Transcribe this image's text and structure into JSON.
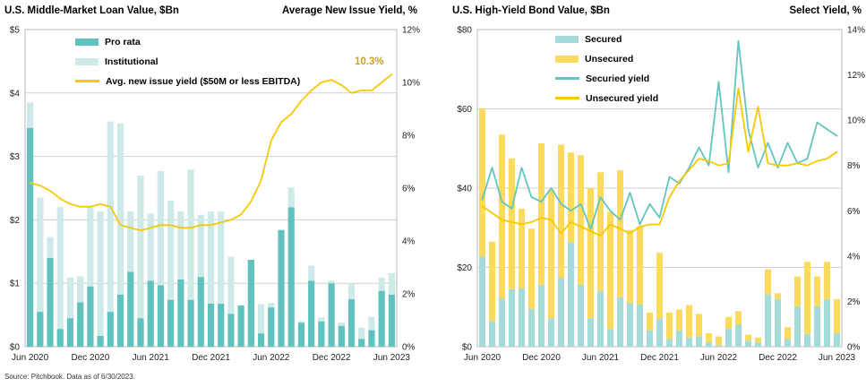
{
  "source_note": "Source: Pitchbook. Data as of 6/30/2023.",
  "colors": {
    "pro_rata": "#5fc2be",
    "institutional": "#cdeae8",
    "secured": "#a5dbd8",
    "unsecured": "#fbda5c",
    "avg_yield_line": "#f4ca06",
    "secured_yield_line": "#62c5c1",
    "unsecured_yield_line": "#f6c900",
    "grid": "#cfcfcf",
    "border": "#b9b9b9",
    "axis_text": "#222222",
    "end_label": "#c7a418"
  },
  "chart_data": [
    {
      "type": "bar",
      "title_left": "U.S. Middle-Market Loan Value, $Bn",
      "title_right": "Average New Issue Yield, %",
      "end_label": "10.3%",
      "categories": [
        "Jun 2020",
        "Jul 2020",
        "Aug 2020",
        "Sep 2020",
        "Oct 2020",
        "Nov 2020",
        "Dec 2020",
        "Jan 2021",
        "Feb 2021",
        "Mar 2021",
        "Apr 2021",
        "May 2021",
        "Jun 2021",
        "Jul 2021",
        "Aug 2021",
        "Sep 2021",
        "Oct 2021",
        "Nov 2021",
        "Dec 2021",
        "Jan 2022",
        "Feb 2022",
        "Mar 2022",
        "Apr 2022",
        "May 2022",
        "Jun 2022",
        "Jul 2022",
        "Aug 2022",
        "Sep 2022",
        "Oct 2022",
        "Nov 2022",
        "Dec 2022",
        "Jan 2023",
        "Feb 2023",
        "Mar 2023",
        "Apr 2023",
        "May 2023",
        "Jun 2023"
      ],
      "x_tick_indices": [
        0,
        6,
        12,
        18,
        24,
        30,
        36
      ],
      "x_tick_labels": [
        "Jun 2020",
        "Dec 2020",
        "Jun 2021",
        "Dec 2021",
        "Jun 2022",
        "Dec 2022",
        "Jun 2023"
      ],
      "left_axis": {
        "max": 5,
        "tick_values": [
          5,
          4,
          3,
          2,
          1,
          0
        ],
        "tick_labels": [
          "$5",
          "$4",
          "$3",
          "$2",
          "$1",
          "$0"
        ],
        "grid_values": [
          4,
          3,
          2,
          1
        ]
      },
      "right_axis": {
        "max": 12,
        "tick_values": [
          12,
          10,
          8,
          6,
          4,
          2,
          0
        ],
        "tick_labels": [
          "12%",
          "10%",
          "8%",
          "6%",
          "4%",
          "2%",
          "0%"
        ]
      },
      "series_bars": [
        {
          "name": "Pro rata",
          "color": "pro_rata",
          "values": [
            3.45,
            0.55,
            1.4,
            0.28,
            0.45,
            0.7,
            0.95,
            0.17,
            0.55,
            0.82,
            1.18,
            0.45,
            1.04,
            0.97,
            0.74,
            1.06,
            0.74,
            1.1,
            0.68,
            0.68,
            0.52,
            0.65,
            1.37,
            0.21,
            0.62,
            1.84,
            2.2,
            0.38,
            1.04,
            0.4,
            1.0,
            0.33,
            0.75,
            0.12,
            0.26,
            0.88,
            0.82
          ]
        },
        {
          "name": "Institutional",
          "color": "institutional",
          "values": [
            0.4,
            1.8,
            0.33,
            1.92,
            0.64,
            0.41,
            1.25,
            1.96,
            3.0,
            2.7,
            0.95,
            2.25,
            1.06,
            1.8,
            1.56,
            1.07,
            2.05,
            0.98,
            1.45,
            1.45,
            0.9,
            0.0,
            0.0,
            0.46,
            0.07,
            0.0,
            0.31,
            0.02,
            0.24,
            0.06,
            0.04,
            0.05,
            0.25,
            0.18,
            0.21,
            0.21,
            0.34
          ]
        }
      ],
      "series_lines": [
        {
          "name": "Avg. new issue yield ($50M or less EBITDA)",
          "color": "avg_yield_line",
          "values": [
            6.2,
            6.1,
            5.9,
            5.6,
            5.4,
            5.3,
            5.3,
            5.4,
            5.3,
            4.6,
            4.5,
            4.4,
            4.5,
            4.6,
            4.6,
            4.5,
            4.5,
            4.6,
            4.6,
            4.7,
            4.8,
            5.0,
            5.5,
            6.3,
            7.8,
            8.5,
            8.8,
            9.3,
            9.7,
            10.0,
            10.1,
            9.9,
            9.6,
            9.7,
            9.7,
            10.0,
            10.3
          ]
        }
      ],
      "legend": [
        {
          "label": "Pro rata",
          "type": "bar",
          "color": "pro_rata"
        },
        {
          "label": "Institutional",
          "type": "bar",
          "color": "institutional"
        },
        {
          "label": "Avg. new issue yield ($50M or less EBITDA)",
          "type": "line",
          "color": "avg_yield_line"
        }
      ]
    },
    {
      "type": "bar",
      "title_left": "U.S. High-Yield Bond Value, $Bn",
      "title_right": "Select Yield, %",
      "end_label": "",
      "categories": [
        "Jun 2020",
        "Jul 2020",
        "Aug 2020",
        "Sep 2020",
        "Oct 2020",
        "Nov 2020",
        "Dec 2020",
        "Jan 2021",
        "Feb 2021",
        "Mar 2021",
        "Apr 2021",
        "May 2021",
        "Jun 2021",
        "Jul 2021",
        "Aug 2021",
        "Sep 2021",
        "Oct 2021",
        "Nov 2021",
        "Dec 2021",
        "Jan 2022",
        "Feb 2022",
        "Mar 2022",
        "Apr 2022",
        "May 2022",
        "Jun 2022",
        "Jul 2022",
        "Aug 2022",
        "Sep 2022",
        "Oct 2022",
        "Nov 2022",
        "Dec 2022",
        "Jan 2023",
        "Feb 2023",
        "Mar 2023",
        "Apr 2023",
        "May 2023",
        "Jun 2023"
      ],
      "x_tick_indices": [
        0,
        6,
        12,
        18,
        24,
        30,
        36
      ],
      "x_tick_labels": [
        "Jun 2020",
        "Dec 2020",
        "Jun 2021",
        "Dec 2021",
        "Jun 2022",
        "Dec 2022",
        "Jun 2023"
      ],
      "left_axis": {
        "max": 80,
        "tick_values": [
          80,
          60,
          40,
          20,
          0
        ],
        "tick_labels": [
          "$80",
          "$60",
          "$40",
          "$20",
          "$0"
        ],
        "grid_values": [
          60,
          40,
          20
        ]
      },
      "right_axis": {
        "max": 14,
        "tick_values": [
          14,
          12,
          10,
          8,
          6,
          4,
          2,
          0
        ],
        "tick_labels": [
          "14%",
          "12%",
          "10%",
          "8%",
          "6%",
          "4%",
          "2%",
          "0%"
        ]
      },
      "series_bars": [
        {
          "name": "Secured",
          "color": "secured",
          "values": [
            22.8,
            6.5,
            12.2,
            14.5,
            14.7,
            9.5,
            15.6,
            7.2,
            17.4,
            26.4,
            15.6,
            7.2,
            14.0,
            4.5,
            12.4,
            11.0,
            10.6,
            4.1,
            7.1,
            1.9,
            4.1,
            2.3,
            2.6,
            1.1,
            0.4,
            4.5,
            5.6,
            1.5,
            1.1,
            13.2,
            12.0,
            1.9,
            10.2,
            3.2,
            10.2,
            12.0,
            3.4
          ]
        },
        {
          "name": "Unsecured",
          "color": "unsecured",
          "values": [
            37.3,
            20.0,
            41.3,
            33.0,
            20.1,
            20.3,
            35.7,
            32.4,
            33.6,
            22.6,
            32.7,
            32.8,
            30.0,
            29.5,
            32.1,
            18.4,
            19.7,
            4.5,
            16.6,
            6.7,
            5.3,
            8.2,
            5.7,
            2.3,
            2.2,
            3.0,
            3.4,
            1.5,
            1.2,
            6.3,
            1.5,
            3.0,
            7.5,
            18.2,
            7.5,
            9.4,
            8.6
          ]
        }
      ],
      "series_lines": [
        {
          "name": "Securied yield",
          "color": "secured_yield_line",
          "values": [
            6.5,
            7.9,
            6.4,
            6.1,
            7.9,
            6.6,
            6.4,
            7.0,
            6.3,
            6.0,
            6.3,
            5.2,
            6.6,
            6.0,
            5.6,
            6.8,
            5.4,
            6.3,
            5.7,
            7.5,
            7.2,
            7.9,
            8.8,
            8.0,
            11.7,
            7.7,
            13.5,
            9.6,
            7.9,
            9.0,
            7.9,
            9.0,
            8.1,
            8.3,
            9.9,
            9.6,
            9.3
          ]
        },
        {
          "name": "Unsecured yield",
          "color": "unsecured_yield_line",
          "values": [
            6.2,
            5.9,
            5.6,
            5.5,
            5.4,
            5.5,
            5.7,
            5.6,
            5.0,
            5.5,
            5.3,
            5.1,
            4.9,
            5.4,
            5.2,
            5.0,
            5.3,
            5.4,
            5.4,
            6.6,
            7.3,
            7.8,
            8.3,
            8.2,
            8.0,
            8.1,
            11.4,
            8.6,
            10.6,
            8.1,
            8.0,
            8.0,
            8.1,
            8.0,
            8.2,
            8.3,
            8.6
          ]
        }
      ],
      "legend": [
        {
          "label": "Secured",
          "type": "bar",
          "color": "secured"
        },
        {
          "label": "Unsecured",
          "type": "bar",
          "color": "unsecured"
        },
        {
          "label": "Securied yield",
          "type": "line",
          "color": "secured_yield_line"
        },
        {
          "label": "Unsecured yield",
          "type": "line",
          "color": "unsecured_yield_line"
        }
      ]
    }
  ]
}
